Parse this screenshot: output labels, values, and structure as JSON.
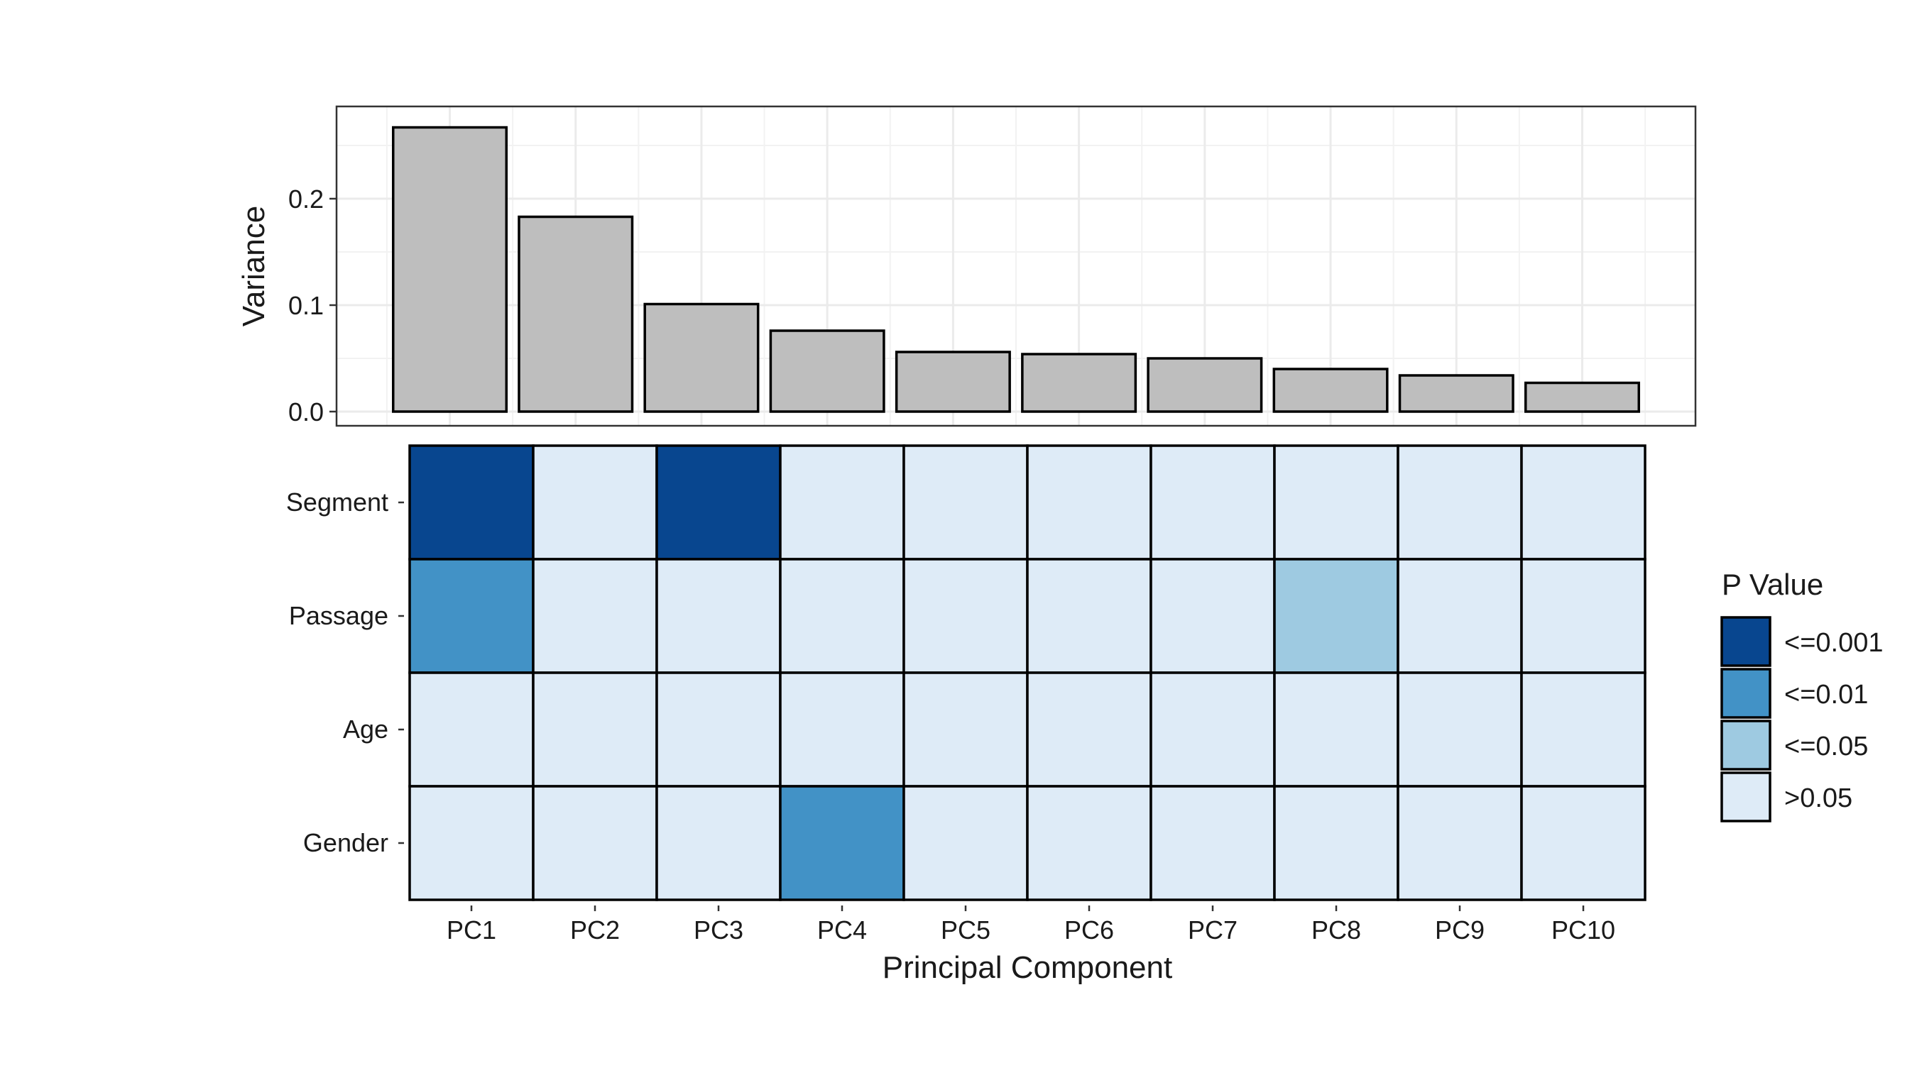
{
  "chart_data": [
    {
      "type": "bar",
      "categories": [
        "PC1",
        "PC2",
        "PC3",
        "PC4",
        "PC5",
        "PC6",
        "PC7",
        "PC8",
        "PC9",
        "PC10"
      ],
      "values": [
        0.267,
        0.183,
        0.101,
        0.076,
        0.056,
        0.054,
        0.05,
        0.04,
        0.034,
        0.027
      ],
      "ylabel": "Variance",
      "ylim": [
        0,
        0.28
      ],
      "yticks": [
        "0.0",
        "0.1",
        "0.2"
      ],
      "grid": true,
      "bar_fill": "#BEBEBE",
      "bar_stroke": "#000000"
    },
    {
      "type": "heatmap",
      "x": [
        "PC1",
        "PC2",
        "PC3",
        "PC4",
        "PC5",
        "PC6",
        "PC7",
        "PC8",
        "PC9",
        "PC10"
      ],
      "y": [
        "Segment",
        "Passage",
        "Age",
        "Gender"
      ],
      "values": [
        [
          "<=0.001",
          ">0.05",
          "<=0.001",
          ">0.05",
          ">0.05",
          ">0.05",
          ">0.05",
          ">0.05",
          ">0.05",
          ">0.05"
        ],
        [
          "<=0.01",
          ">0.05",
          ">0.05",
          ">0.05",
          ">0.05",
          ">0.05",
          ">0.05",
          "<=0.05",
          ">0.05",
          ">0.05"
        ],
        [
          ">0.05",
          ">0.05",
          ">0.05",
          ">0.05",
          ">0.05",
          ">0.05",
          ">0.05",
          ">0.05",
          ">0.05",
          ">0.05"
        ],
        [
          ">0.05",
          ">0.05",
          ">0.05",
          "<=0.01",
          ">0.05",
          ">0.05",
          ">0.05",
          ">0.05",
          ">0.05",
          ">0.05"
        ]
      ],
      "xlabel": "Principal Component",
      "legend": {
        "title": "P Value",
        "position": "right",
        "entries": [
          {
            "label": "<=0.001",
            "color": "#08468F"
          },
          {
            "label": "<=0.01",
            "color": "#4292C6"
          },
          {
            "label": "<=0.05",
            "color": "#9ECAE1"
          },
          {
            "label": ">0.05",
            "color": "#DEEBF7"
          }
        ]
      }
    }
  ]
}
